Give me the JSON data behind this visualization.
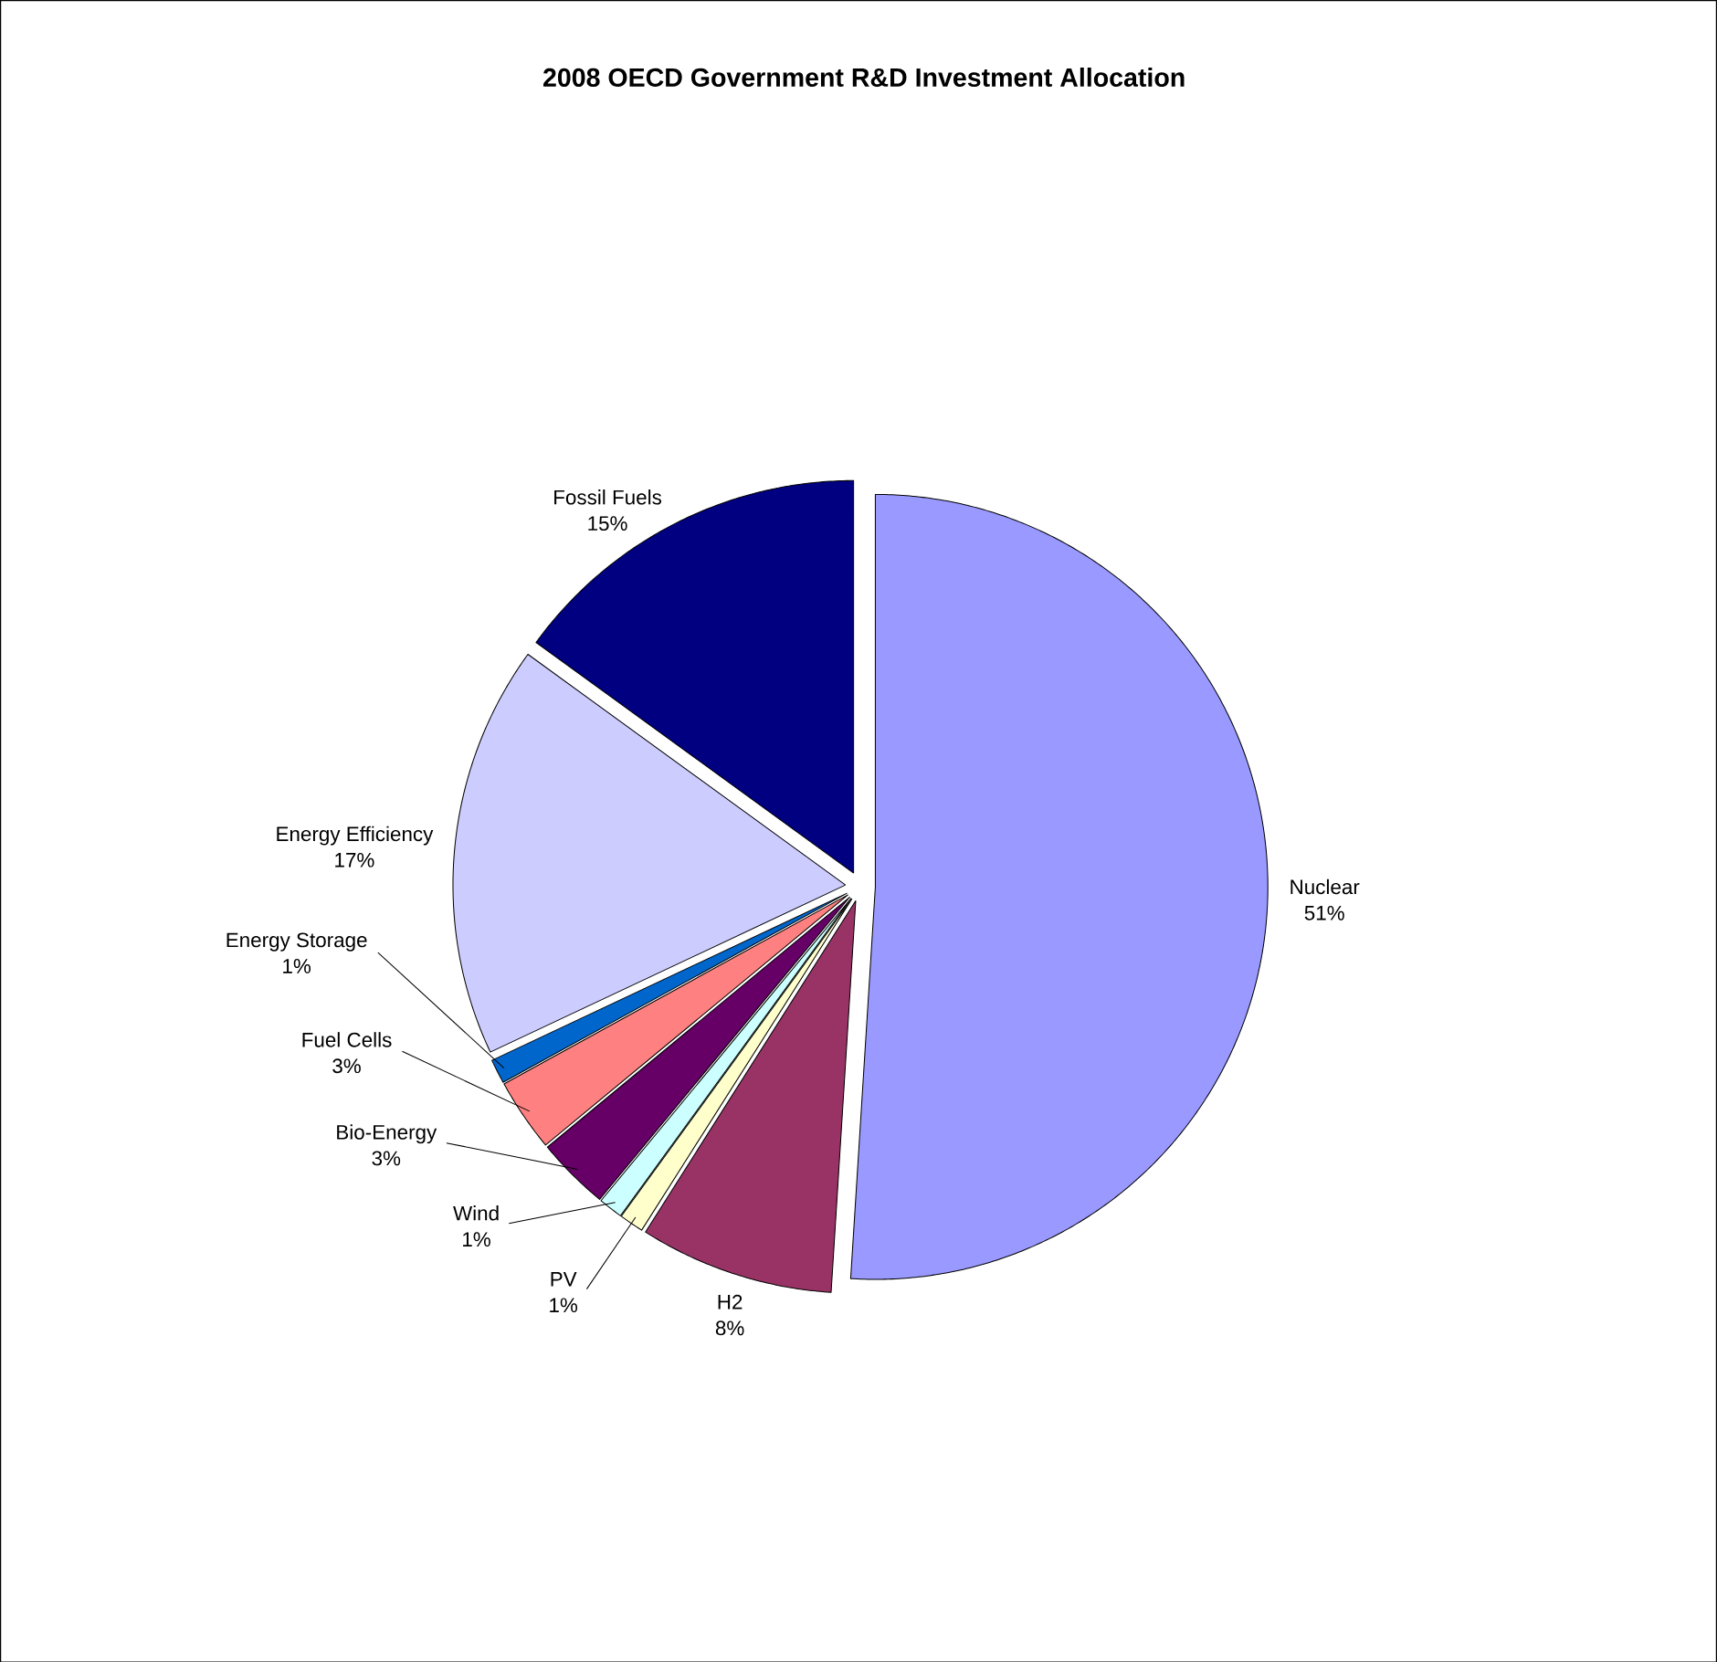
{
  "chart_data": {
    "type": "pie",
    "title": "2008 OECD Government R&D Investment Allocation",
    "categories": [
      "Nuclear",
      "H2",
      "PV",
      "Wind",
      "Bio-Energy",
      "Fuel Cells",
      "Energy Storage",
      "Energy Efficiency",
      "Fossil Fuels"
    ],
    "values": [
      51,
      8,
      1,
      1,
      3,
      3,
      1,
      17,
      15
    ],
    "value_labels": [
      "51%",
      "8%",
      "1%",
      "1%",
      "3%",
      "3%",
      "1%",
      "17%",
      "15%"
    ],
    "colors": [
      "#9999ff",
      "#993366",
      "#ffffcc",
      "#ccffff",
      "#660066",
      "#ff8080",
      "#0066cc",
      "#ccccff",
      "#000080"
    ]
  }
}
